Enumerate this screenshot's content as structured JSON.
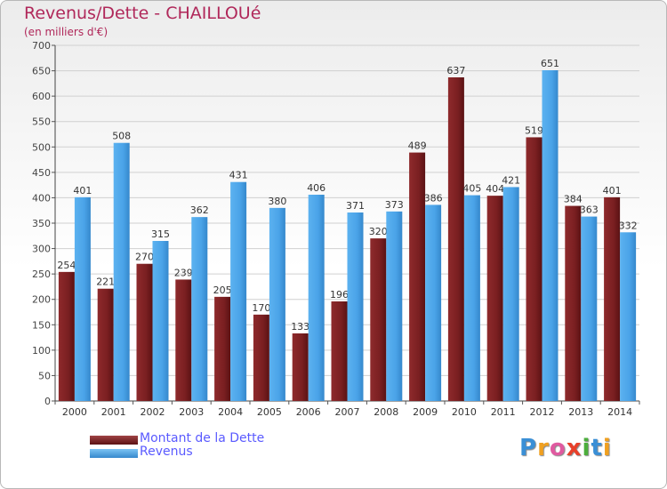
{
  "title": "Revenus/Dette - CHAILLOUé",
  "subtitle": "(en milliers d'€)",
  "colors": {
    "dette": "#7a1f21",
    "revenus": "#4aa3e8",
    "title": "#b0285a",
    "legend_text": "#5a5aff"
  },
  "legend": [
    {
      "label": "Montant de la Dette",
      "color": "#7a1f21"
    },
    {
      "label": "Revenus",
      "color": "#4aa3e8"
    }
  ],
  "logo": {
    "text": "Proxiti",
    "letters": [
      "P",
      "r",
      "o",
      "x",
      "i",
      "t",
      "i"
    ]
  },
  "chart_data": {
    "type": "bar",
    "title": "Revenus/Dette - CHAILLOUé",
    "subtitle": "(en milliers d'€)",
    "categories": [
      "2000",
      "2001",
      "2002",
      "2003",
      "2004",
      "2005",
      "2006",
      "2007",
      "2008",
      "2009",
      "2010",
      "2011",
      "2012",
      "2013",
      "2014"
    ],
    "series": [
      {
        "name": "Montant de la Dette",
        "values": [
          254,
          221,
          270,
          239,
          205,
          170,
          133,
          196,
          320,
          489,
          637,
          404,
          519,
          384,
          401
        ]
      },
      {
        "name": "Revenus",
        "values": [
          401,
          508,
          315,
          362,
          431,
          380,
          406,
          371,
          373,
          386,
          405,
          421,
          651,
          363,
          332
        ]
      }
    ],
    "ylim": [
      0,
      700
    ],
    "yticks": [
      0,
      50,
      100,
      150,
      200,
      250,
      300,
      350,
      400,
      450,
      500,
      550,
      600,
      650,
      700
    ],
    "grid": true,
    "legend_position": "bottom-left"
  }
}
